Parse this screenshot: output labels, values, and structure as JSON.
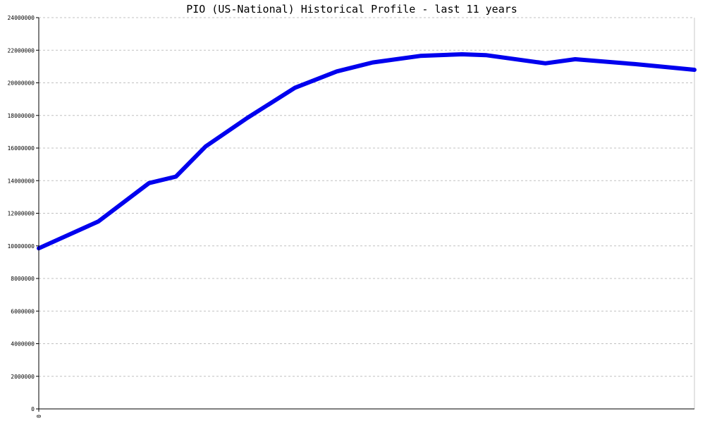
{
  "chart_data": {
    "type": "line",
    "title": "PIO (US-National) Historical Profile - last 11 years",
    "xlabel": "",
    "ylabel": "",
    "x_tick_labels": [
      "0"
    ],
    "y_tick_labels": [
      "24000000",
      "22000000",
      "20000000",
      "18000000",
      "16000000",
      "14000000",
      "12000000",
      "10000000",
      "8000000",
      "6000000",
      "4000000",
      "2000000",
      "0"
    ],
    "ylim": [
      0,
      24000000
    ],
    "xlim": [
      0,
      11
    ],
    "grid": true,
    "legend": "none",
    "series": [
      {
        "color": "#0000ee",
        "x": [
          0,
          1.0,
          1.85,
          2.3,
          2.8,
          3.5,
          4.3,
          5.0,
          5.6,
          6.4,
          7.1,
          7.5,
          8.5,
          9.0,
          10.0,
          11.0
        ],
        "values": [
          9850000,
          11500000,
          13850000,
          14250000,
          16100000,
          17850000,
          19700000,
          20700000,
          21250000,
          21650000,
          21750000,
          21700000,
          21200000,
          21450000,
          21150000,
          20800000
        ]
      }
    ]
  }
}
